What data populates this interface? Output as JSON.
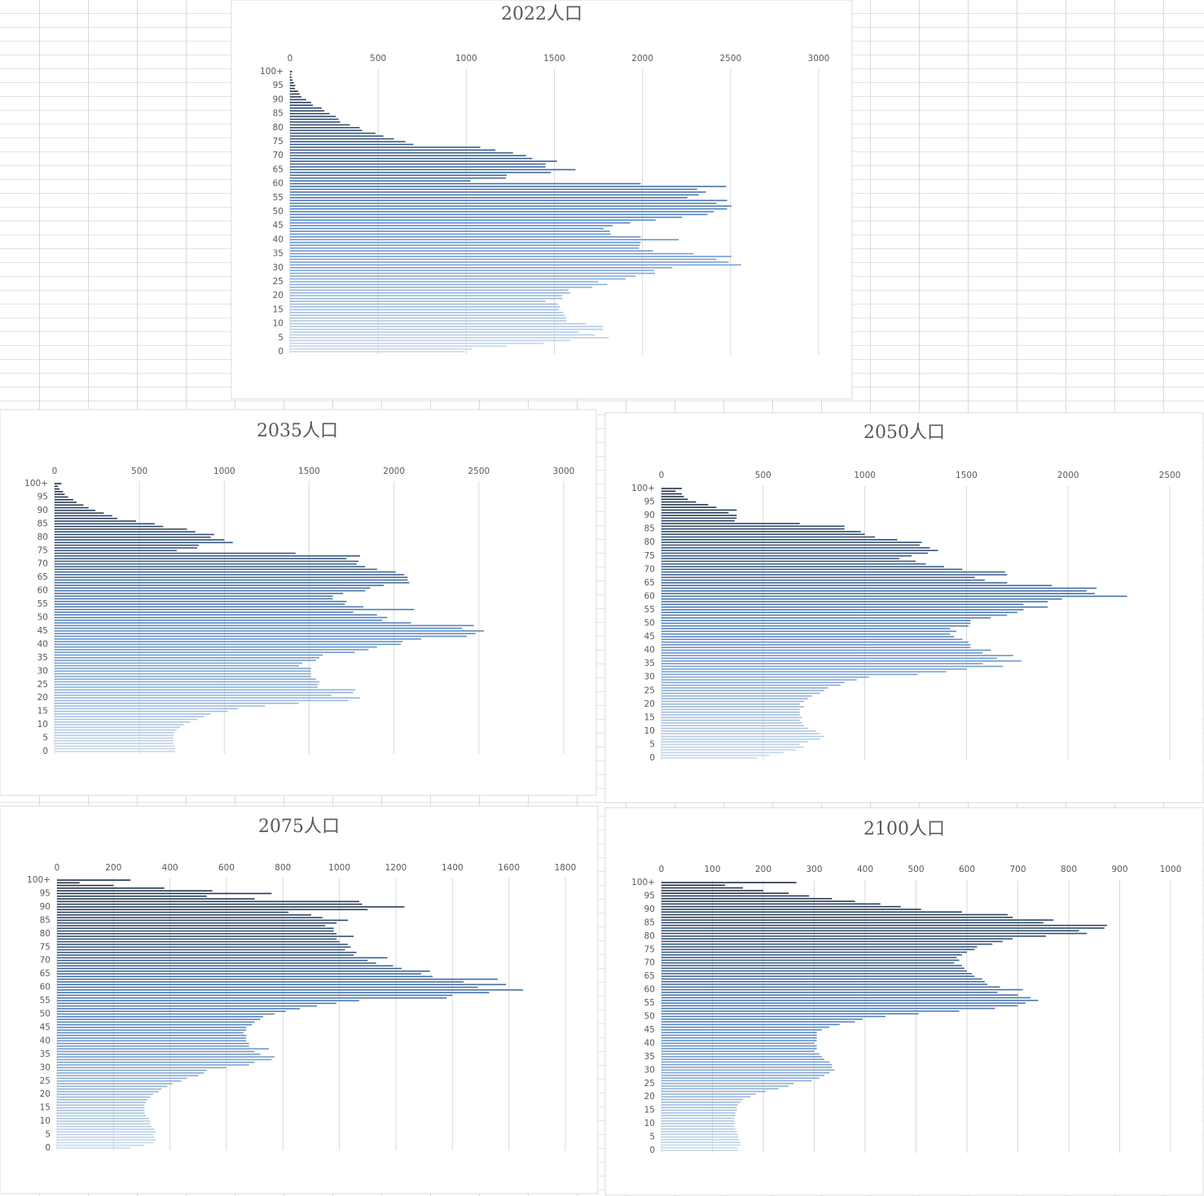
{
  "chart_data": [
    {
      "type": "bar",
      "orientation": "horizontal",
      "title": "2022人口",
      "categories": [
        "0",
        null,
        null,
        null,
        null,
        "5",
        null,
        null,
        null,
        null,
        "10",
        null,
        null,
        null,
        null,
        "15",
        null,
        null,
        null,
        null,
        "20",
        null,
        null,
        null,
        null,
        "25",
        null,
        null,
        null,
        null,
        "30",
        null,
        null,
        null,
        null,
        "35",
        null,
        null,
        null,
        null,
        "40",
        null,
        null,
        null,
        null,
        "45",
        null,
        null,
        null,
        null,
        "50",
        null,
        null,
        null,
        null,
        "55",
        null,
        null,
        null,
        null,
        "60",
        null,
        null,
        null,
        null,
        "65",
        null,
        null,
        null,
        null,
        "70",
        null,
        null,
        null,
        null,
        "75",
        null,
        null,
        null,
        null,
        "80",
        null,
        null,
        null,
        null,
        "85",
        null,
        null,
        null,
        null,
        "90",
        null,
        null,
        null,
        null,
        "95",
        null,
        null,
        null,
        null,
        "100+"
      ],
      "values": [
        990,
        1035,
        1230,
        1440,
        1590,
        1810,
        1730,
        1640,
        1775,
        1775,
        1680,
        1570,
        1570,
        1560,
        1550,
        1525,
        1530,
        1520,
        1450,
        1545,
        1545,
        1590,
        1580,
        1715,
        1800,
        1750,
        1905,
        1960,
        2070,
        2065,
        2170,
        2560,
        2490,
        2420,
        2505,
        2290,
        2060,
        1980,
        1985,
        1990,
        2205,
        1990,
        1820,
        1815,
        1780,
        1830,
        1930,
        2075,
        2225,
        2370,
        2405,
        2480,
        2505,
        2420,
        2480,
        2255,
        2320,
        2360,
        2310,
        2475,
        1990,
        1025,
        1225,
        1230,
        1480,
        1620,
        1450,
        1450,
        1515,
        1375,
        1340,
        1265,
        1165,
        1080,
        700,
        655,
        590,
        530,
        485,
        410,
        395,
        340,
        285,
        275,
        260,
        225,
        195,
        180,
        130,
        120,
        92,
        65,
        55,
        46,
        28,
        30,
        22,
        15,
        10,
        7,
        12
      ],
      "xlim": [
        0,
        3000
      ],
      "xticks": [
        0,
        500,
        1000,
        1500,
        2000,
        2500,
        3000
      ],
      "grid": true,
      "colors": [
        "#c6d9ee",
        "#4f81bd",
        "#1f2f44"
      ]
    },
    {
      "type": "bar",
      "orientation": "horizontal",
      "title": "2035人口",
      "categories": [
        "0",
        null,
        null,
        null,
        null,
        "5",
        null,
        null,
        null,
        null,
        "10",
        null,
        null,
        null,
        null,
        "15",
        null,
        null,
        null,
        null,
        "20",
        null,
        null,
        null,
        null,
        "25",
        null,
        null,
        null,
        null,
        "30",
        null,
        null,
        null,
        null,
        "35",
        null,
        null,
        null,
        null,
        "40",
        null,
        null,
        null,
        null,
        "45",
        null,
        null,
        null,
        null,
        "50",
        null,
        null,
        null,
        null,
        "55",
        null,
        null,
        null,
        null,
        "60",
        null,
        null,
        null,
        null,
        "65",
        null,
        null,
        null,
        null,
        "70",
        null,
        null,
        null,
        null,
        "75",
        null,
        null,
        null,
        null,
        "80",
        null,
        null,
        null,
        null,
        "85",
        null,
        null,
        null,
        null,
        "90",
        null,
        null,
        null,
        null,
        "95",
        null,
        null,
        null,
        null,
        "100+"
      ],
      "values": [
        710,
        710,
        705,
        700,
        700,
        700,
        700,
        705,
        720,
        740,
        760,
        800,
        840,
        880,
        920,
        1020,
        1080,
        1240,
        1440,
        1730,
        1800,
        1630,
        1760,
        1770,
        1550,
        1550,
        1560,
        1540,
        1510,
        1510,
        1510,
        1510,
        1440,
        1460,
        1540,
        1560,
        1580,
        1770,
        1850,
        1900,
        2040,
        2050,
        2160,
        2430,
        2480,
        2530,
        2400,
        2470,
        2100,
        1930,
        1960,
        1900,
        1760,
        2120,
        1820,
        1710,
        1720,
        1640,
        1640,
        1700,
        1830,
        1860,
        1940,
        2090,
        2080,
        2080,
        2060,
        2010,
        1900,
        1830,
        1780,
        1790,
        1720,
        1800,
        1420,
        720,
        840,
        850,
        1050,
        1000,
        920,
        940,
        830,
        780,
        640,
        590,
        480,
        370,
        340,
        290,
        240,
        200,
        170,
        130,
        110,
        80,
        60,
        50,
        30,
        20,
        40
      ],
      "xlim": [
        0,
        3000
      ],
      "xticks": [
        0,
        500,
        1000,
        1500,
        2000,
        2500,
        3000
      ],
      "grid": true,
      "colors": [
        "#c6d9ee",
        "#4f81bd",
        "#1f2f44"
      ]
    },
    {
      "type": "bar",
      "orientation": "horizontal",
      "title": "2050人口",
      "categories": [
        "0",
        null,
        null,
        null,
        null,
        "5",
        null,
        null,
        null,
        null,
        "10",
        null,
        null,
        null,
        null,
        "15",
        null,
        null,
        null,
        null,
        "20",
        null,
        null,
        null,
        null,
        "25",
        null,
        null,
        null,
        null,
        "30",
        null,
        null,
        null,
        null,
        "35",
        null,
        null,
        null,
        null,
        "40",
        null,
        null,
        null,
        null,
        "45",
        null,
        null,
        null,
        null,
        "50",
        null,
        null,
        null,
        null,
        "55",
        null,
        null,
        null,
        null,
        "60",
        null,
        null,
        null,
        null,
        "65",
        null,
        null,
        null,
        null,
        "70",
        null,
        null,
        null,
        null,
        "75",
        null,
        null,
        null,
        null,
        "80",
        null,
        null,
        null,
        null,
        "85",
        null,
        null,
        null,
        null,
        "90",
        null,
        null,
        null,
        null,
        "95",
        null,
        null,
        null,
        null,
        "100+"
      ],
      "values": [
        470,
        530,
        600,
        660,
        700,
        680,
        720,
        780,
        800,
        780,
        760,
        720,
        700,
        690,
        680,
        690,
        680,
        680,
        680,
        700,
        680,
        700,
        720,
        740,
        780,
        800,
        820,
        880,
        900,
        960,
        1020,
        1260,
        1400,
        1500,
        1680,
        1580,
        1770,
        1650,
        1730,
        1580,
        1620,
        1520,
        1520,
        1510,
        1480,
        1440,
        1420,
        1450,
        1420,
        1510,
        1520,
        1520,
        1620,
        1700,
        1750,
        1780,
        1900,
        1780,
        1900,
        1970,
        2290,
        2130,
        2090,
        2140,
        1920,
        1700,
        1590,
        1540,
        1700,
        1690,
        1480,
        1390,
        1300,
        1250,
        1170,
        1230,
        1310,
        1360,
        1320,
        1270,
        1280,
        1160,
        1050,
        1000,
        980,
        900,
        900,
        680,
        360,
        370,
        370,
        330,
        370,
        270,
        230,
        170,
        130,
        110,
        100,
        70,
        100
      ],
      "xlim": [
        0,
        2500
      ],
      "xticks": [
        0,
        500,
        1000,
        1500,
        2000,
        2500
      ],
      "grid": true,
      "colors": [
        "#c6d9ee",
        "#4f81bd",
        "#1f2f44"
      ]
    },
    {
      "type": "bar",
      "orientation": "horizontal",
      "title": "2075人口",
      "categories": [
        "0",
        null,
        null,
        null,
        null,
        "5",
        null,
        null,
        null,
        null,
        "10",
        null,
        null,
        null,
        null,
        "15",
        null,
        null,
        null,
        null,
        "20",
        null,
        null,
        null,
        null,
        "25",
        null,
        null,
        null,
        null,
        "30",
        null,
        null,
        null,
        null,
        "35",
        null,
        null,
        null,
        null,
        "40",
        null,
        null,
        null,
        null,
        "45",
        null,
        null,
        null,
        null,
        "50",
        null,
        null,
        null,
        null,
        "55",
        null,
        null,
        null,
        null,
        "60",
        null,
        null,
        null,
        null,
        "65",
        null,
        null,
        null,
        null,
        "70",
        null,
        null,
        null,
        null,
        "75",
        null,
        null,
        null,
        null,
        "80",
        null,
        null,
        null,
        null,
        "85",
        null,
        null,
        null,
        null,
        "90",
        null,
        null,
        null,
        null,
        "95",
        null,
        null,
        null,
        null,
        "100+"
      ],
      "values": [
        260,
        310,
        340,
        350,
        345,
        340,
        350,
        345,
        335,
        330,
        330,
        325,
        315,
        310,
        310,
        310,
        310,
        315,
        320,
        330,
        340,
        360,
        370,
        390,
        410,
        440,
        460,
        500,
        520,
        530,
        600,
        680,
        700,
        760,
        770,
        720,
        700,
        750,
        680,
        680,
        670,
        670,
        670,
        660,
        670,
        670,
        690,
        700,
        720,
        730,
        770,
        810,
        860,
        920,
        990,
        1070,
        1380,
        1400,
        1530,
        1650,
        1490,
        1590,
        1440,
        1560,
        1330,
        1290,
        1320,
        1220,
        1190,
        1130,
        1100,
        1170,
        1050,
        1060,
        1020,
        1040,
        1030,
        1000,
        990,
        1050,
        990,
        980,
        980,
        950,
        990,
        1030,
        940,
        900,
        820,
        1100,
        1230,
        1080,
        1070,
        700,
        530,
        760,
        550,
        380,
        200,
        80,
        260
      ],
      "xlim": [
        0,
        1800
      ],
      "xticks": [
        0,
        200,
        400,
        600,
        800,
        1000,
        1200,
        1400,
        1600,
        1800
      ],
      "grid": true,
      "colors": [
        "#c6d9ee",
        "#4f81bd",
        "#1f2f44"
      ]
    },
    {
      "type": "bar",
      "orientation": "horizontal",
      "title": "2100人口",
      "categories": [
        "0",
        null,
        null,
        null,
        null,
        "5",
        null,
        null,
        null,
        null,
        "10",
        null,
        null,
        null,
        null,
        "15",
        null,
        null,
        null,
        null,
        "20",
        null,
        null,
        null,
        null,
        "25",
        null,
        null,
        null,
        null,
        "30",
        null,
        null,
        null,
        null,
        "35",
        null,
        null,
        null,
        null,
        "40",
        null,
        null,
        null,
        null,
        "45",
        null,
        null,
        null,
        null,
        "50",
        null,
        null,
        null,
        null,
        "55",
        null,
        null,
        null,
        null,
        "60",
        null,
        null,
        null,
        null,
        "65",
        null,
        null,
        null,
        null,
        "70",
        null,
        null,
        null,
        null,
        "75",
        null,
        null,
        null,
        null,
        "80",
        null,
        null,
        null,
        null,
        "85",
        null,
        null,
        null,
        null,
        "90",
        null,
        null,
        null,
        null,
        "95",
        null,
        null,
        null,
        null,
        "100+"
      ],
      "values": [
        150,
        150,
        155,
        155,
        152,
        150,
        150,
        148,
        145,
        143,
        143,
        143,
        143,
        145,
        145,
        148,
        148,
        150,
        155,
        160,
        175,
        185,
        205,
        230,
        250,
        260,
        295,
        310,
        320,
        330,
        340,
        335,
        335,
        330,
        320,
        315,
        310,
        300,
        305,
        305,
        300,
        305,
        305,
        305,
        305,
        315,
        330,
        350,
        380,
        395,
        440,
        505,
        585,
        655,
        700,
        715,
        740,
        725,
        700,
        660,
        710,
        665,
        640,
        635,
        630,
        615,
        610,
        600,
        595,
        590,
        575,
        585,
        580,
        590,
        600,
        615,
        620,
        650,
        670,
        690,
        755,
        835,
        820,
        870,
        875,
        750,
        770,
        690,
        680,
        590,
        510,
        470,
        430,
        380,
        335,
        290,
        250,
        200,
        160,
        125,
        265
      ],
      "xlim": [
        0,
        1000
      ],
      "xticks": [
        0,
        100,
        200,
        300,
        400,
        500,
        600,
        700,
        800,
        900,
        1000
      ],
      "grid": true,
      "colors": [
        "#c6d9ee",
        "#4f81bd",
        "#1f2f44"
      ]
    }
  ]
}
